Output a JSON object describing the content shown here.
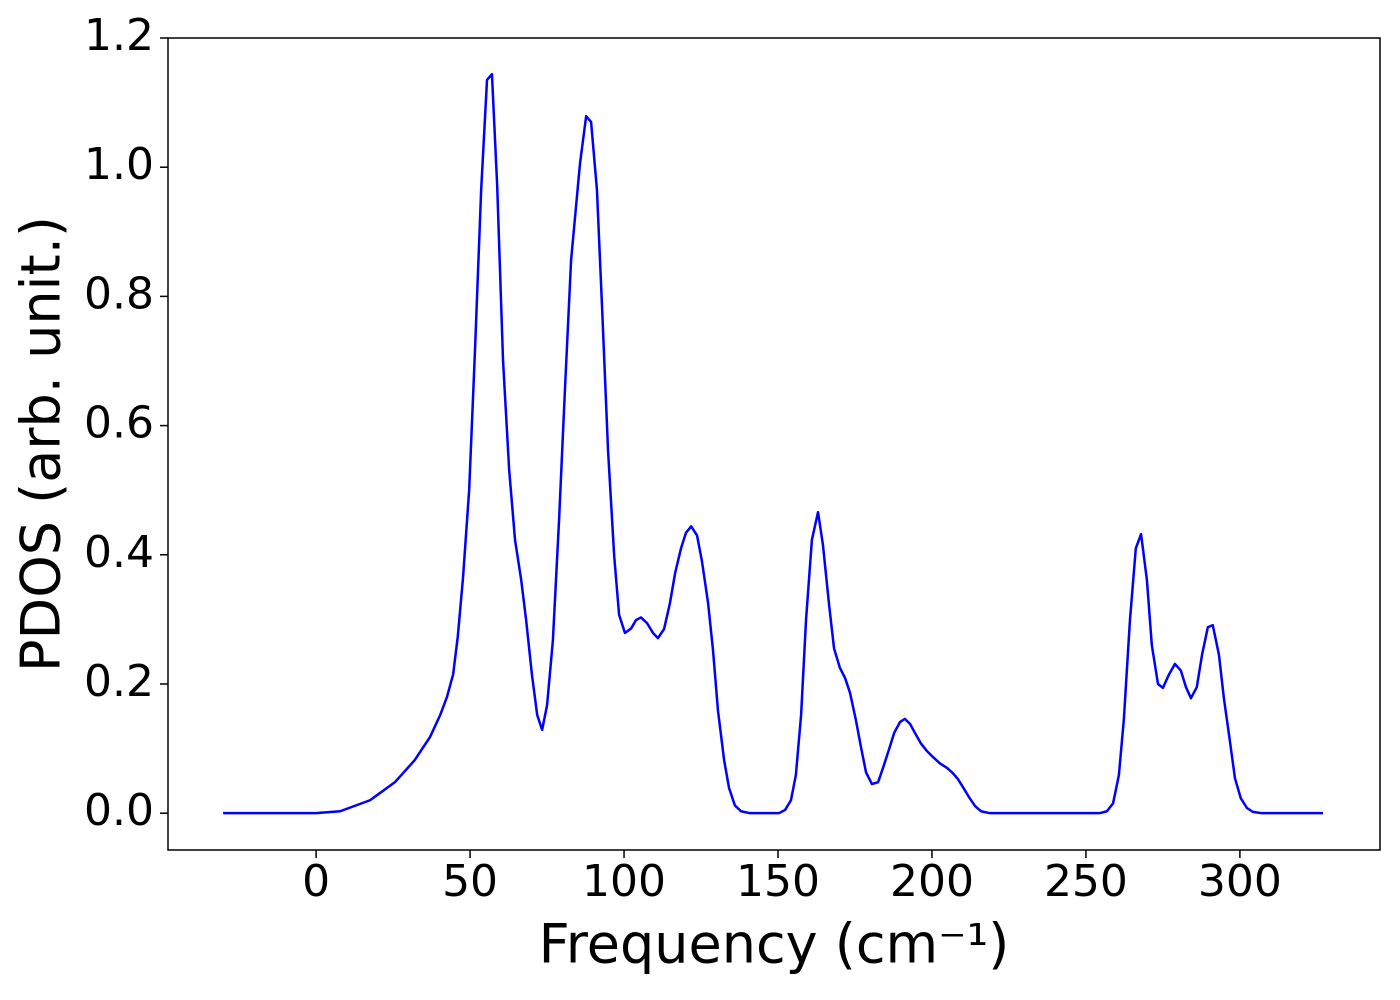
{
  "chart_data": {
    "type": "line",
    "xlabel": "Frequency (cm⁻¹)",
    "ylabel": "PDOS (arb. unit.)",
    "xlim": [
      -48.1,
      345.5
    ],
    "ylim": [
      -0.057,
      1.2
    ],
    "xticks": [
      0,
      50,
      100,
      150,
      200,
      250,
      300
    ],
    "yticks": [
      {
        "value": 0,
        "label": "0.0"
      },
      0.2,
      0.4,
      0.6,
      0.8,
      {
        "value": 1,
        "label": "1.0"
      },
      1.2
    ],
    "grid": false,
    "series": [
      {
        "color": "#0000ff",
        "x": [
          -30.2,
          0,
          7.8,
          17.5,
          25.6,
          32,
          37,
          40.3,
          42.5,
          44.5,
          46,
          47.7,
          49.7,
          51.6,
          53.6,
          55.5,
          57.1,
          58.8,
          60.7,
          62.7,
          64.6,
          66.6,
          68.2,
          70.1,
          71.8,
          73.4,
          75,
          76.9,
          78.9,
          80.8,
          82.8,
          85.7,
          87.7,
          89.3,
          91.2,
          92.9,
          94.8,
          96.8,
          98.4,
          100.3,
          102.3,
          103.9,
          105.5,
          107.5,
          109.4,
          111,
          113,
          114.9,
          116.6,
          118.5,
          120.1,
          121.8,
          123.7,
          125.3,
          127.3,
          128.9,
          130.5,
          132.5,
          134.1,
          136,
          138,
          140.9,
          150.3,
          152.3,
          154.2,
          155.8,
          157.5,
          159.1,
          161,
          163,
          164.6,
          166.6,
          168.2,
          170.1,
          171.8,
          173.4,
          175.3,
          177,
          178.6,
          180.5,
          182.5,
          184.1,
          186,
          187.7,
          189.6,
          191.2,
          192.9,
          194.5,
          196.4,
          198.4,
          200.3,
          202.6,
          204.9,
          206.8,
          208.4,
          210.1,
          212,
          214,
          215.9,
          218.8,
          254.5,
          256.8,
          258.8,
          260.7,
          262.3,
          264.3,
          266.2,
          267.9,
          269.8,
          271.4,
          273.4,
          275,
          276.9,
          278.9,
          280.8,
          282.5,
          284.1,
          286,
          287.7,
          289.6,
          291.2,
          293.2,
          294.8,
          296.8,
          298.4,
          300.3,
          302.3,
          304.2,
          307.1,
          327
        ],
        "values": [
          0,
          0,
          0.003,
          0.02,
          0.048,
          0.082,
          0.118,
          0.152,
          0.18,
          0.215,
          0.273,
          0.364,
          0.5,
          0.717,
          0.965,
          1.135,
          1.144,
          0.972,
          0.701,
          0.531,
          0.423,
          0.361,
          0.299,
          0.214,
          0.152,
          0.129,
          0.167,
          0.268,
          0.454,
          0.655,
          0.856,
          1.006,
          1.079,
          1.07,
          0.965,
          0.779,
          0.562,
          0.398,
          0.307,
          0.279,
          0.286,
          0.299,
          0.303,
          0.294,
          0.279,
          0.271,
          0.285,
          0.325,
          0.372,
          0.41,
          0.434,
          0.444,
          0.43,
          0.39,
          0.325,
          0.252,
          0.159,
          0.082,
          0.039,
          0.012,
          0.003,
          0,
          0,
          0.005,
          0.02,
          0.059,
          0.152,
          0.299,
          0.423,
          0.466,
          0.415,
          0.322,
          0.255,
          0.225,
          0.209,
          0.186,
          0.144,
          0.101,
          0.063,
          0.045,
          0.048,
          0.07,
          0.098,
          0.124,
          0.141,
          0.146,
          0.138,
          0.124,
          0.108,
          0.096,
          0.087,
          0.077,
          0.07,
          0.062,
          0.053,
          0.04,
          0.025,
          0.011,
          0.003,
          0,
          0,
          0.003,
          0.015,
          0.059,
          0.144,
          0.299,
          0.41,
          0.432,
          0.361,
          0.26,
          0.2,
          0.194,
          0.214,
          0.231,
          0.221,
          0.195,
          0.178,
          0.195,
          0.245,
          0.288,
          0.291,
          0.245,
          0.178,
          0.11,
          0.054,
          0.023,
          0.008,
          0.002,
          0,
          0
        ]
      }
    ]
  }
}
